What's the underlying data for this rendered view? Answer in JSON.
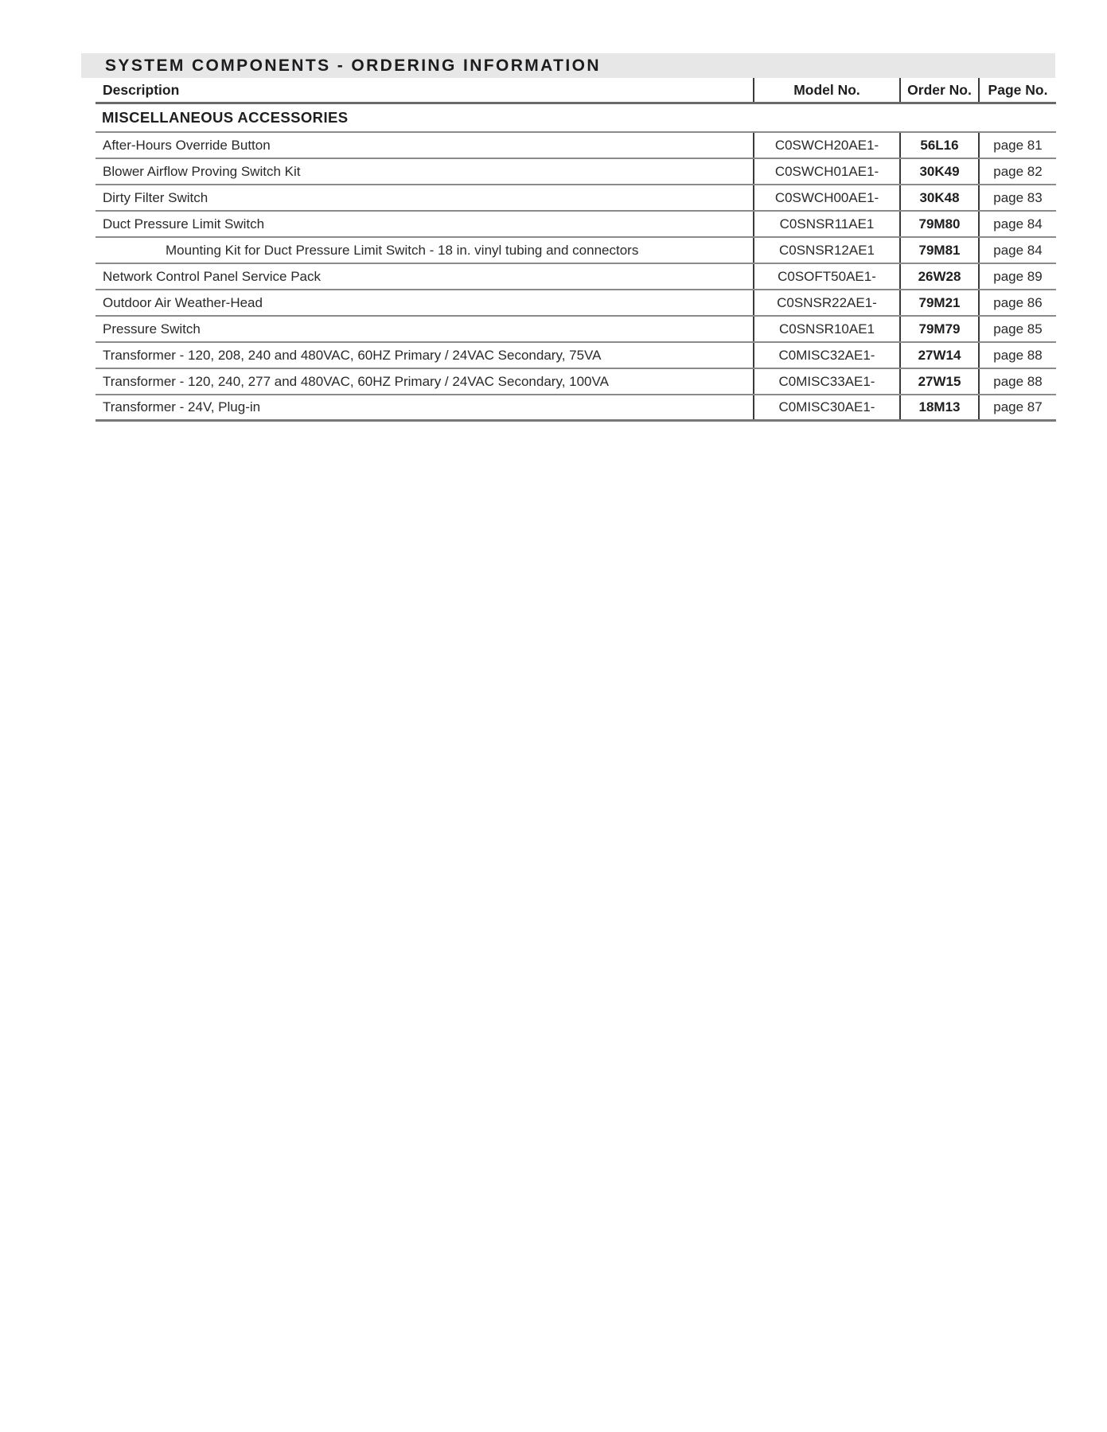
{
  "page": {
    "title": "SYSTEM COMPONENTS - ORDERING INFORMATION"
  },
  "colors": {
    "title_bar_bg": "#e7e7e8",
    "body_text": "#2a2a2a",
    "row_border": "#8a8a8c",
    "column_border": "#3a3a3c"
  },
  "table": {
    "columns": {
      "description": "Description",
      "model": "Model No.",
      "order": "Order No.",
      "page": "Page No."
    },
    "section": "MISCELLANEOUS ACCESSORIES",
    "rows": [
      {
        "description": "After-Hours Override Button",
        "model": "C0SWCH20AE1-",
        "order": "56L16",
        "page": "page 81"
      },
      {
        "description": "Blower Airflow Proving Switch Kit",
        "model": "C0SWCH01AE1-",
        "order": "30K49",
        "page": "page 82"
      },
      {
        "description": "Dirty Filter Switch",
        "model": "C0SWCH00AE1-",
        "order": "30K48",
        "page": "page 83"
      },
      {
        "description": "Duct Pressure Limit Switch",
        "model": "C0SNSR11AE1",
        "order": "79M80",
        "page": "page 84"
      },
      {
        "description": "Mounting Kit for Duct Pressure Limit Switch - 18 in. vinyl tubing and connectors",
        "model": "C0SNSR12AE1",
        "order": "79M81",
        "page": "page 84"
      },
      {
        "description": "Network Control Panel Service Pack",
        "model": "C0SOFT50AE1-",
        "order": "26W28",
        "page": "page 89"
      },
      {
        "description": "Outdoor Air Weather-Head",
        "model": "C0SNSR22AE1-",
        "order": "79M21",
        "page": "page 86"
      },
      {
        "description": "Pressure Switch",
        "model": "C0SNSR10AE1",
        "order": "79M79",
        "page": "page 85"
      },
      {
        "description": "Transformer - 120, 208, 240 and 480VAC, 60HZ Primary / 24VAC Secondary, 75VA",
        "model": "C0MISC32AE1-",
        "order": "27W14",
        "page": "page 88"
      },
      {
        "description": "Transformer - 120, 240, 277 and 480VAC, 60HZ Primary / 24VAC Secondary, 100VA",
        "model": "C0MISC33AE1-",
        "order": "27W15",
        "page": "page 88"
      },
      {
        "description": "Transformer - 24V, Plug-in",
        "model": "C0MISC30AE1-",
        "order": "18M13",
        "page": "page 87"
      }
    ]
  }
}
